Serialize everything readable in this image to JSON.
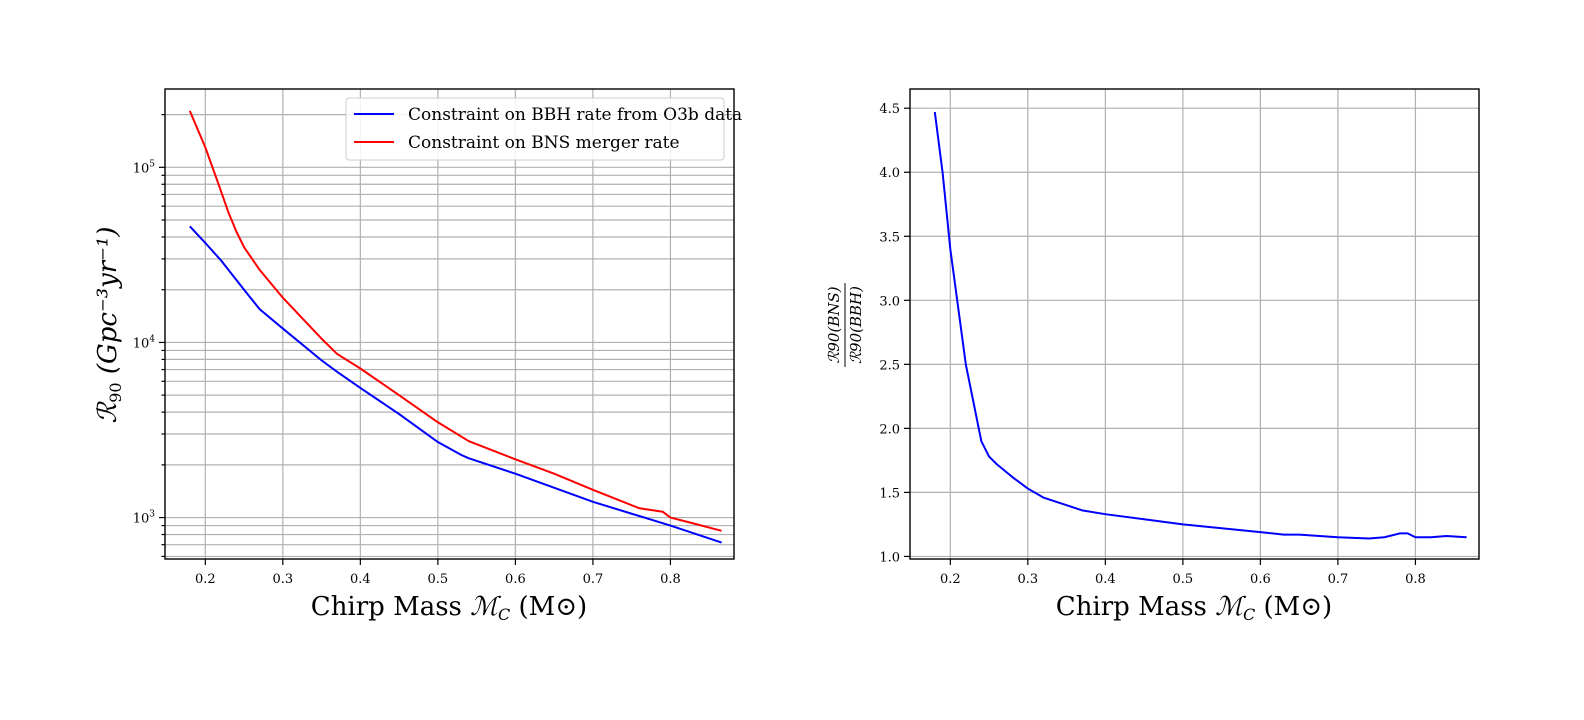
{
  "chart_data": [
    {
      "type": "line",
      "xlabel": "Chirp Mass",
      "xlabel_symbol": "ℳ",
      "xlabel_symbol_sub": "C",
      "xlabel_unit": "(M⊙)",
      "ylabel": "ℛ",
      "ylabel_sub": "90",
      "ylabel_unit": "(Gpc⁻³yr⁻¹)",
      "yscale": "log",
      "xlim": [
        0.148,
        0.882
      ],
      "ylim": [
        580,
        280000
      ],
      "x_ticks": [
        "0.2",
        "0.3",
        "0.4",
        "0.5",
        "0.6",
        "0.7",
        "0.8"
      ],
      "y_ticks": [
        {
          "base": "10",
          "exp": "3",
          "value": 1000
        },
        {
          "base": "10",
          "exp": "4",
          "value": 10000
        },
        {
          "base": "10",
          "exp": "5",
          "value": 100000
        }
      ],
      "grid": true,
      "legend_position": "upper right",
      "series": [
        {
          "name": "Constraint on BBH rate from O3b data",
          "color": "#0000ff",
          "x": [
            0.18,
            0.2,
            0.22,
            0.25,
            0.27,
            0.3,
            0.35,
            0.37,
            0.4,
            0.45,
            0.5,
            0.53,
            0.54,
            0.6,
            0.7,
            0.8,
            0.866
          ],
          "y": [
            46000,
            37000,
            29500,
            20000,
            15500,
            12000,
            7900,
            6800,
            5500,
            3900,
            2700,
            2280,
            2180,
            1780,
            1230,
            900,
            720
          ]
        },
        {
          "name": "Constraint on BNS merger rate",
          "color": "#ff0000",
          "x": [
            0.18,
            0.2,
            0.215,
            0.23,
            0.24,
            0.25,
            0.27,
            0.3,
            0.35,
            0.37,
            0.4,
            0.45,
            0.5,
            0.54,
            0.6,
            0.65,
            0.7,
            0.76,
            0.79,
            0.8,
            0.82,
            0.866
          ],
          "y": [
            210000,
            130000,
            85000,
            55000,
            43000,
            35000,
            26000,
            18000,
            10500,
            8600,
            7100,
            5000,
            3500,
            2730,
            2150,
            1780,
            1440,
            1130,
            1080,
            1000,
            950,
            840
          ]
        }
      ]
    },
    {
      "type": "line",
      "xlabel": "Chirp Mass",
      "xlabel_symbol": "ℳ",
      "xlabel_symbol_sub": "C",
      "xlabel_unit": "(M⊙)",
      "ylabel_numerator": "ℛ90(BNS)",
      "ylabel_denominator": "ℛ90(BBH)",
      "yscale": "linear",
      "xlim": [
        0.148,
        0.882
      ],
      "ylim": [
        0.98,
        4.65
      ],
      "x_ticks": [
        "0.2",
        "0.3",
        "0.4",
        "0.5",
        "0.6",
        "0.7",
        "0.8"
      ],
      "y_ticks": [
        "1.0",
        "1.5",
        "2.0",
        "2.5",
        "3.0",
        "3.5",
        "4.0",
        "4.5"
      ],
      "grid": true,
      "series": [
        {
          "color": "#0000ff",
          "x": [
            0.18,
            0.19,
            0.2,
            0.21,
            0.22,
            0.23,
            0.24,
            0.25,
            0.26,
            0.28,
            0.3,
            0.32,
            0.35,
            0.37,
            0.4,
            0.45,
            0.5,
            0.55,
            0.6,
            0.63,
            0.65,
            0.7,
            0.74,
            0.76,
            0.78,
            0.79,
            0.8,
            0.82,
            0.84,
            0.866
          ],
          "y": [
            4.47,
            4.0,
            3.4,
            2.95,
            2.5,
            2.2,
            1.9,
            1.78,
            1.72,
            1.62,
            1.53,
            1.46,
            1.4,
            1.36,
            1.33,
            1.29,
            1.25,
            1.22,
            1.19,
            1.17,
            1.17,
            1.15,
            1.14,
            1.15,
            1.18,
            1.18,
            1.15,
            1.15,
            1.16,
            1.15
          ]
        }
      ]
    }
  ]
}
